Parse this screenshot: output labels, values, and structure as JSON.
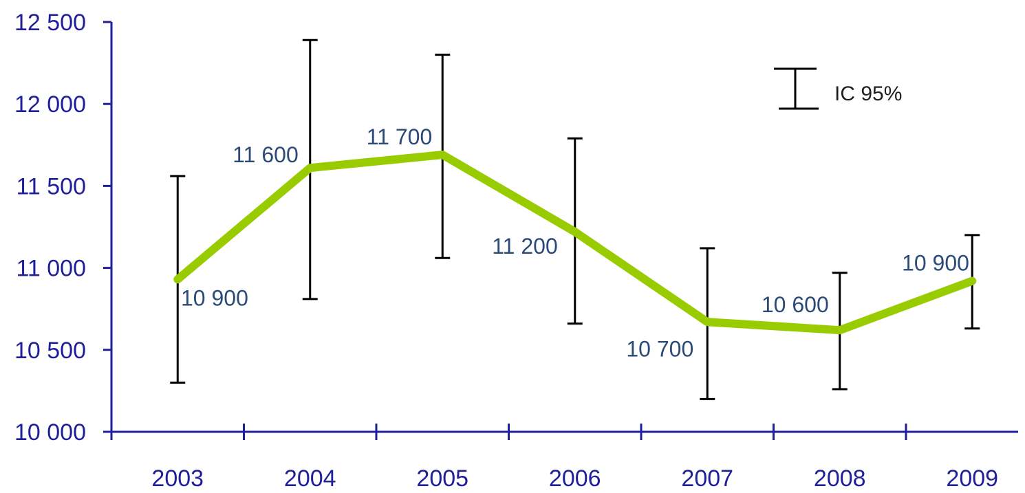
{
  "chart_data": {
    "type": "line",
    "title": "",
    "xlabel": "",
    "ylabel": "",
    "categories": [
      "2003",
      "2004",
      "2005",
      "2006",
      "2007",
      "2008",
      "2009"
    ],
    "series": [
      {
        "values": [
          10930,
          11610,
          11690,
          11220,
          10670,
          10620,
          10920
        ],
        "ci_upper": [
          11560,
          12390,
          12300,
          11790,
          11120,
          10970,
          11200
        ],
        "ci_lower": [
          10300,
          10810,
          11060,
          10660,
          10200,
          10260,
          10630
        ]
      }
    ],
    "data_labels": [
      "10 900",
      "11 600",
      "11 700",
      "11 200",
      "10 700",
      "10 600",
      "10 900"
    ],
    "ylim": [
      10000,
      12500
    ],
    "yticks": [
      10000,
      10500,
      11000,
      11500,
      12000,
      12500
    ],
    "ytick_labels": [
      "10 000",
      "10 500",
      "11 000",
      "11 500",
      "12 000",
      "12 500"
    ],
    "legend": {
      "label": "IC 95%",
      "placement": "top-right"
    },
    "grid": false,
    "colors": {
      "line": "#99cc00",
      "axis": "#1f1f9b",
      "error_bar": "#000000",
      "data_label": "#2c4a78",
      "tick_label": "#1f1f9b"
    }
  }
}
